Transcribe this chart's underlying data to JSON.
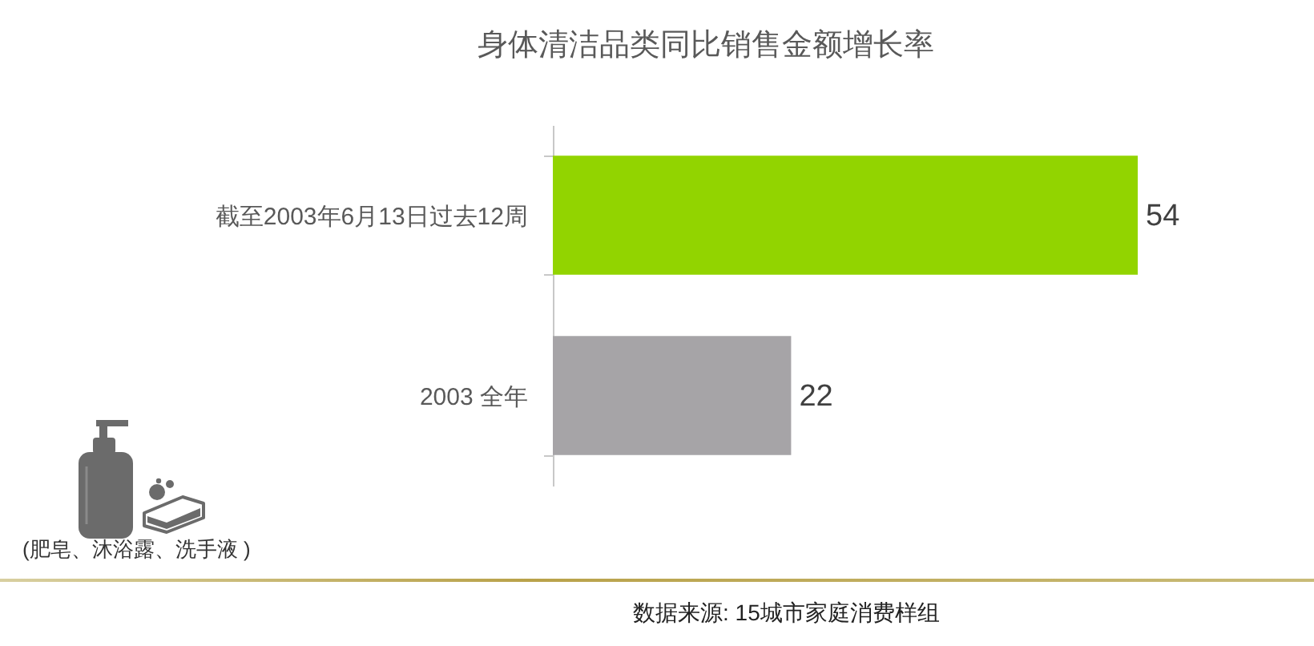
{
  "chart_data": {
    "type": "bar",
    "orientation": "horizontal",
    "title": "身体清洁品类同比销售金额增长率",
    "categories": [
      "截至2003年6月13日过去12周",
      "2003 全年"
    ],
    "values": [
      54,
      22
    ],
    "colors": [
      "#92d400",
      "#a6a4a7"
    ],
    "data_labels": true,
    "tick_labels": "y",
    "annotations": [
      "(肥皂、沐浴露、洗手液 )",
      "数据来源: 15城市家庭消费样组"
    ]
  }
}
